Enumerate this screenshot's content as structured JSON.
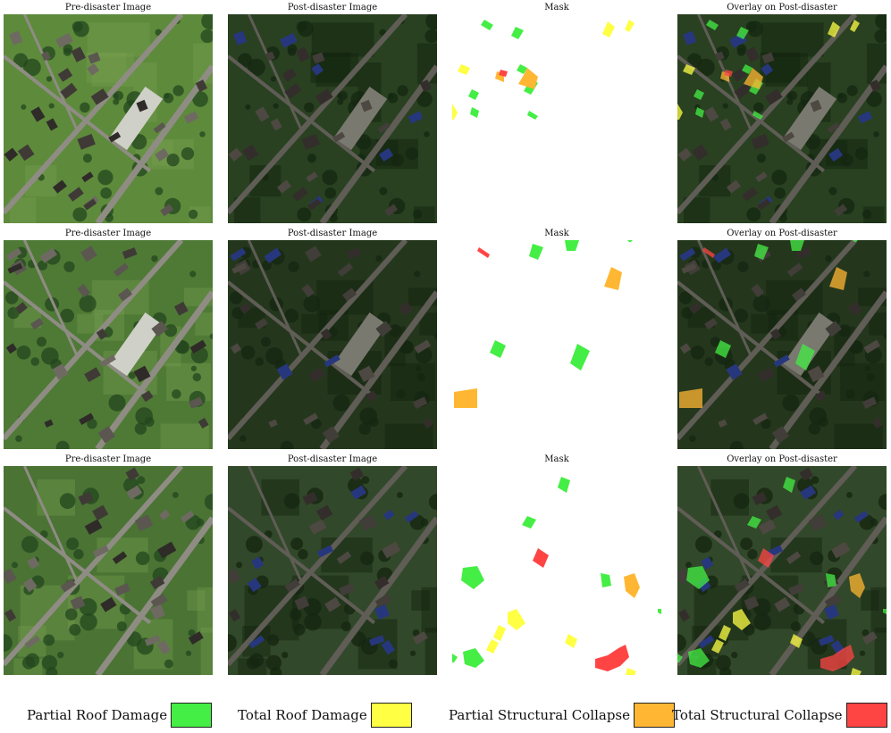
{
  "grid": {
    "rows": [
      {
        "captions": [
          "Pre-disaster Image",
          "Post-disaster Image",
          "Mask",
          "Overlay on Post-disaster"
        ],
        "masks": [
          {
            "cls": "partial_roof",
            "pts": [
              [
                36,
                6
              ],
              [
                46,
                12
              ],
              [
                42,
                18
              ],
              [
                32,
                12
              ]
            ]
          },
          {
            "cls": "partial_roof",
            "pts": [
              [
                71,
                14
              ],
              [
                80,
                18
              ],
              [
                74,
                28
              ],
              [
                66,
                24
              ]
            ]
          },
          {
            "cls": "partial_roof",
            "pts": [
              [
                76,
                56
              ],
              [
                84,
                60
              ],
              [
                80,
                67
              ],
              [
                72,
                63
              ]
            ]
          },
          {
            "cls": "partial_roof",
            "pts": [
              [
                22,
                84
              ],
              [
                30,
                88
              ],
              [
                26,
                96
              ],
              [
                18,
                92
              ]
            ]
          },
          {
            "cls": "partial_roof",
            "pts": [
              [
                88,
                72
              ],
              [
                96,
                77
              ],
              [
                88,
                90
              ],
              [
                80,
                86
              ]
            ]
          },
          {
            "cls": "partial_roof",
            "pts": [
              [
                22,
                104
              ],
              [
                30,
                108
              ],
              [
                28,
                116
              ],
              [
                20,
                112
              ]
            ]
          },
          {
            "cls": "partial_roof",
            "pts": [
              [
                86,
                108
              ],
              [
                96,
                114
              ],
              [
                93,
                118
              ],
              [
                84,
                113
              ]
            ]
          },
          {
            "cls": "total_roof",
            "pts": [
              [
                174,
                8
              ],
              [
                182,
                14
              ],
              [
                176,
                26
              ],
              [
                168,
                22
              ]
            ]
          },
          {
            "cls": "total_roof",
            "pts": [
              [
                198,
                6
              ],
              [
                204,
                10
              ],
              [
                198,
                20
              ],
              [
                193,
                17
              ]
            ]
          },
          {
            "cls": "total_roof",
            "pts": [
              [
                10,
                56
              ],
              [
                20,
                60
              ],
              [
                16,
                68
              ],
              [
                6,
                64
              ]
            ]
          },
          {
            "cls": "total_roof",
            "pts": [
              [
                0,
                100
              ],
              [
                6,
                110
              ],
              [
                2,
                118
              ],
              [
                0,
                118
              ]
            ]
          },
          {
            "cls": "partial_collapse",
            "pts": [
              [
                50,
                64
              ],
              [
                58,
                66
              ],
              [
                58,
                76
              ],
              [
                48,
                72
              ]
            ]
          },
          {
            "cls": "partial_collapse",
            "pts": [
              [
                84,
                60
              ],
              [
                96,
                70
              ],
              [
                92,
                84
              ],
              [
                74,
                78
              ],
              [
                80,
                68
              ]
            ]
          },
          {
            "cls": "total_collapse",
            "pts": [
              [
                54,
                62
              ],
              [
                62,
                64
              ],
              [
                60,
                70
              ],
              [
                52,
                68
              ]
            ]
          }
        ]
      },
      {
        "captions": [
          "Pre-disaster Image",
          "Post-disaster Image",
          "Mask",
          "Overlay on Post-disaster"
        ],
        "masks": [
          {
            "cls": "partial_roof",
            "pts": [
              [
                90,
                4
              ],
              [
                102,
                8
              ],
              [
                96,
                22
              ],
              [
                86,
                18
              ]
            ]
          },
          {
            "cls": "partial_roof",
            "pts": [
              [
                126,
                0
              ],
              [
                142,
                0
              ],
              [
                138,
                12
              ],
              [
                128,
                12
              ]
            ]
          },
          {
            "cls": "partial_roof",
            "pts": [
              [
                196,
                0
              ],
              [
                202,
                0
              ],
              [
                200,
                2
              ],
              [
                198,
                2
              ]
            ]
          },
          {
            "cls": "partial_roof",
            "pts": [
              [
                48,
                112
              ],
              [
                60,
                118
              ],
              [
                54,
                132
              ],
              [
                42,
                126
              ]
            ]
          },
          {
            "cls": "partial_roof",
            "pts": [
              [
                140,
                116
              ],
              [
                154,
                124
              ],
              [
                144,
                146
              ],
              [
                132,
                138
              ]
            ]
          },
          {
            "cls": "partial_collapse",
            "pts": [
              [
                178,
                30
              ],
              [
                190,
                36
              ],
              [
                186,
                56
              ],
              [
                170,
                52
              ]
            ]
          },
          {
            "cls": "partial_collapse",
            "pts": [
              [
                2,
                170
              ],
              [
                28,
                166
              ],
              [
                28,
                188
              ],
              [
                2,
                188
              ]
            ]
          },
          {
            "cls": "total_collapse",
            "pts": [
              [
                30,
                8
              ],
              [
                42,
                16
              ],
              [
                40,
                20
              ],
              [
                28,
                12
              ]
            ]
          }
        ]
      },
      {
        "captions": [
          "Pre-disaster Image",
          "Post-disaster Image",
          "Mask",
          "Overlay on Post-disaster"
        ],
        "masks": [
          {
            "cls": "partial_roof",
            "pts": [
              [
                122,
                12
              ],
              [
                132,
                16
              ],
              [
                128,
                30
              ],
              [
                118,
                24
              ]
            ]
          },
          {
            "cls": "partial_roof",
            "pts": [
              [
                84,
                56
              ],
              [
                94,
                60
              ],
              [
                88,
                70
              ],
              [
                78,
                66
              ]
            ]
          },
          {
            "cls": "partial_roof",
            "pts": [
              [
                12,
                114
              ],
              [
                28,
                112
              ],
              [
                36,
                128
              ],
              [
                24,
                138
              ],
              [
                10,
                128
              ]
            ]
          },
          {
            "cls": "partial_roof",
            "pts": [
              [
                166,
                120
              ],
              [
                176,
                122
              ],
              [
                178,
                134
              ],
              [
                168,
                136
              ]
            ]
          },
          {
            "cls": "partial_roof",
            "pts": [
              [
                12,
                208
              ],
              [
                26,
                204
              ],
              [
                36,
                218
              ],
              [
                26,
                226
              ],
              [
                14,
                222
              ]
            ]
          },
          {
            "cls": "partial_roof",
            "pts": [
              [
                0,
                210
              ],
              [
                6,
                214
              ],
              [
                2,
                220
              ],
              [
                0,
                220
              ]
            ]
          },
          {
            "cls": "partial_roof",
            "pts": [
              [
                230,
                160
              ],
              [
                234,
                160
              ],
              [
                234,
                166
              ],
              [
                230,
                164
              ]
            ]
          },
          {
            "cls": "total_roof",
            "pts": [
              [
                62,
                164
              ],
              [
                72,
                160
              ],
              [
                82,
                176
              ],
              [
                72,
                184
              ],
              [
                62,
                176
              ]
            ]
          },
          {
            "cls": "total_roof",
            "pts": [
              [
                52,
                178
              ],
              [
                60,
                182
              ],
              [
                54,
                196
              ],
              [
                46,
                192
              ]
            ]
          },
          {
            "cls": "total_roof",
            "pts": [
              [
                44,
                194
              ],
              [
                52,
                198
              ],
              [
                46,
                210
              ],
              [
                38,
                206
              ]
            ]
          },
          {
            "cls": "total_roof",
            "pts": [
              [
                130,
                188
              ],
              [
                140,
                194
              ],
              [
                136,
                204
              ],
              [
                126,
                198
              ]
            ]
          },
          {
            "cls": "total_roof",
            "pts": [
              [
                196,
                226
              ],
              [
                206,
                230
              ],
              [
                204,
                234
              ],
              [
                194,
                234
              ]
            ]
          },
          {
            "cls": "partial_collapse",
            "pts": [
              [
                192,
                124
              ],
              [
                204,
                120
              ],
              [
                210,
                136
              ],
              [
                204,
                148
              ],
              [
                194,
                140
              ]
            ]
          },
          {
            "cls": "total_collapse",
            "pts": [
              [
                96,
                92
              ],
              [
                108,
                100
              ],
              [
                102,
                114
              ],
              [
                90,
                106
              ]
            ]
          },
          {
            "cls": "total_collapse",
            "pts": [
              [
                160,
                216
              ],
              [
                174,
                212
              ],
              [
                186,
                204
              ],
              [
                194,
                200
              ],
              [
                198,
                214
              ],
              [
                188,
                224
              ],
              [
                174,
                230
              ],
              [
                160,
                226
              ]
            ]
          }
        ]
      }
    ]
  },
  "legend": [
    {
      "label": "Partial Roof Damage",
      "cls": "partial_roof"
    },
    {
      "label": "Total Roof Damage",
      "cls": "total_roof"
    },
    {
      "label": "Partial Structural Collapse",
      "cls": "partial_collapse"
    },
    {
      "label": "Total Structural Collapse",
      "cls": "total_collapse"
    }
  ],
  "colors": {
    "partial_roof": "#44ee44",
    "total_roof": "#ffff44",
    "partial_collapse": "#ffb733",
    "total_collapse": "#ff4444"
  }
}
